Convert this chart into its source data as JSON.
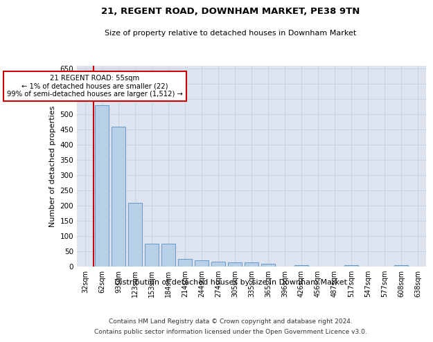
{
  "title": "21, REGENT ROAD, DOWNHAM MARKET, PE38 9TN",
  "subtitle": "Size of property relative to detached houses in Downham Market",
  "xlabel": "Distribution of detached houses by size in Downham Market",
  "ylabel": "Number of detached properties",
  "footer_line1": "Contains HM Land Registry data © Crown copyright and database right 2024.",
  "footer_line2": "Contains public sector information licensed under the Open Government Licence v3.0.",
  "categories": [
    "32sqm",
    "62sqm",
    "93sqm",
    "123sqm",
    "153sqm",
    "184sqm",
    "214sqm",
    "244sqm",
    "274sqm",
    "305sqm",
    "335sqm",
    "365sqm",
    "396sqm",
    "426sqm",
    "456sqm",
    "487sqm",
    "517sqm",
    "547sqm",
    "577sqm",
    "608sqm",
    "638sqm"
  ],
  "values": [
    0,
    530,
    460,
    210,
    75,
    75,
    25,
    20,
    15,
    13,
    13,
    8,
    0,
    5,
    0,
    0,
    5,
    0,
    0,
    5,
    0
  ],
  "bar_color": "#b8cfe8",
  "bar_edge_color": "#6699cc",
  "grid_color": "#c8d4e4",
  "bg_color": "#dde4f0",
  "property_line_color": "#cc0000",
  "annotation_text_line1": "21 REGENT ROAD: 55sqm",
  "annotation_text_line2": "← 1% of detached houses are smaller (22)",
  "annotation_text_line3": "99% of semi-detached houses are larger (1,512) →",
  "annotation_box_edgecolor": "#cc0000",
  "ylim": [
    0,
    660
  ],
  "yticks": [
    0,
    50,
    100,
    150,
    200,
    250,
    300,
    350,
    400,
    450,
    500,
    550,
    600,
    650
  ]
}
